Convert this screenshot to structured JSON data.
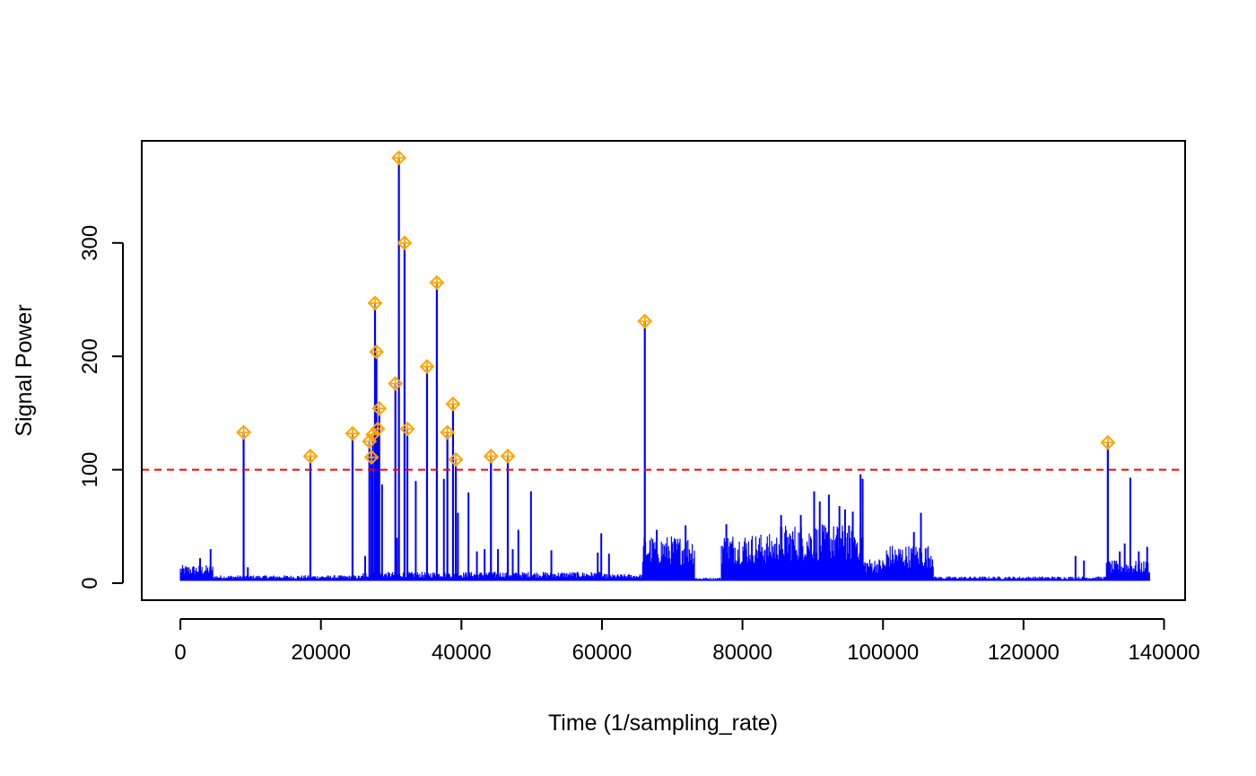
{
  "chart_data": {
    "type": "line",
    "title": "",
    "xlabel": "Time (1/sampling_rate)",
    "ylabel": "Signal Power",
    "xlim": [
      -5500,
      143000
    ],
    "ylim": [
      -15,
      390
    ],
    "x_ticks": [
      0,
      20000,
      40000,
      60000,
      80000,
      100000,
      120000,
      140000
    ],
    "y_ticks": [
      0,
      100,
      200,
      300
    ],
    "grid": false,
    "legend": "none",
    "threshold": {
      "value": 100,
      "style": "dashed",
      "color": "#ff0000"
    },
    "series_color": "#0000ff",
    "marker_color": "#ffa500",
    "baseline": 2,
    "noise_segments": [
      {
        "x_start": 0,
        "x_end": 4600,
        "amplitude": 14
      },
      {
        "x_start": 4600,
        "x_end": 26000,
        "amplitude": 5
      },
      {
        "x_start": 26000,
        "x_end": 60000,
        "amplitude": 8
      },
      {
        "x_start": 60000,
        "x_end": 65800,
        "amplitude": 6
      },
      {
        "x_start": 65800,
        "x_end": 73200,
        "amplitude": 40
      },
      {
        "x_start": 73200,
        "x_end": 77000,
        "amplitude": 3
      },
      {
        "x_start": 77000,
        "x_end": 85000,
        "amplitude": 42
      },
      {
        "x_start": 85000,
        "x_end": 97200,
        "amplitude": 50
      },
      {
        "x_start": 97200,
        "x_end": 100500,
        "amplitude": 20
      },
      {
        "x_start": 100500,
        "x_end": 107200,
        "amplitude": 32
      },
      {
        "x_start": 107200,
        "x_end": 131800,
        "amplitude": 4
      },
      {
        "x_start": 131800,
        "x_end": 138000,
        "amplitude": 18
      }
    ],
    "minor_spikes": [
      {
        "x": 2800,
        "y": 22
      },
      {
        "x": 4300,
        "y": 30
      },
      {
        "x": 9600,
        "y": 14
      },
      {
        "x": 26300,
        "y": 24
      },
      {
        "x": 28700,
        "y": 87
      },
      {
        "x": 30800,
        "y": 40
      },
      {
        "x": 33500,
        "y": 90
      },
      {
        "x": 37500,
        "y": 92
      },
      {
        "x": 39500,
        "y": 62
      },
      {
        "x": 41000,
        "y": 80
      },
      {
        "x": 42200,
        "y": 28
      },
      {
        "x": 43300,
        "y": 30
      },
      {
        "x": 45200,
        "y": 30
      },
      {
        "x": 47300,
        "y": 30
      },
      {
        "x": 48100,
        "y": 47
      },
      {
        "x": 49900,
        "y": 81
      },
      {
        "x": 52800,
        "y": 29
      },
      {
        "x": 59400,
        "y": 27
      },
      {
        "x": 59900,
        "y": 44
      },
      {
        "x": 61000,
        "y": 26
      },
      {
        "x": 67800,
        "y": 47
      },
      {
        "x": 71900,
        "y": 51
      },
      {
        "x": 77700,
        "y": 52
      },
      {
        "x": 85500,
        "y": 60
      },
      {
        "x": 88300,
        "y": 60
      },
      {
        "x": 90200,
        "y": 81
      },
      {
        "x": 91000,
        "y": 72
      },
      {
        "x": 92300,
        "y": 78
      },
      {
        "x": 93800,
        "y": 68
      },
      {
        "x": 94600,
        "y": 65
      },
      {
        "x": 95700,
        "y": 63
      },
      {
        "x": 96800,
        "y": 96
      },
      {
        "x": 97100,
        "y": 92
      },
      {
        "x": 104400,
        "y": 45
      },
      {
        "x": 105400,
        "y": 62
      },
      {
        "x": 127400,
        "y": 24
      },
      {
        "x": 128600,
        "y": 20
      },
      {
        "x": 133700,
        "y": 28
      },
      {
        "x": 134400,
        "y": 35
      },
      {
        "x": 135200,
        "y": 93
      },
      {
        "x": 136400,
        "y": 28
      },
      {
        "x": 137600,
        "y": 32
      }
    ],
    "peaks": [
      {
        "x": 9000,
        "y": 133
      },
      {
        "x": 18500,
        "y": 112
      },
      {
        "x": 24500,
        "y": 132
      },
      {
        "x": 26900,
        "y": 125
      },
      {
        "x": 27200,
        "y": 111
      },
      {
        "x": 27400,
        "y": 131
      },
      {
        "x": 27700,
        "y": 247
      },
      {
        "x": 27900,
        "y": 204
      },
      {
        "x": 28100,
        "y": 136
      },
      {
        "x": 28300,
        "y": 154
      },
      {
        "x": 30600,
        "y": 176
      },
      {
        "x": 31100,
        "y": 375
      },
      {
        "x": 31900,
        "y": 300
      },
      {
        "x": 32300,
        "y": 136
      },
      {
        "x": 35100,
        "y": 191
      },
      {
        "x": 36500,
        "y": 265
      },
      {
        "x": 38000,
        "y": 133
      },
      {
        "x": 38800,
        "y": 158
      },
      {
        "x": 39200,
        "y": 109
      },
      {
        "x": 44200,
        "y": 112
      },
      {
        "x": 46600,
        "y": 112
      },
      {
        "x": 66100,
        "y": 231
      },
      {
        "x": 132000,
        "y": 124
      }
    ]
  }
}
